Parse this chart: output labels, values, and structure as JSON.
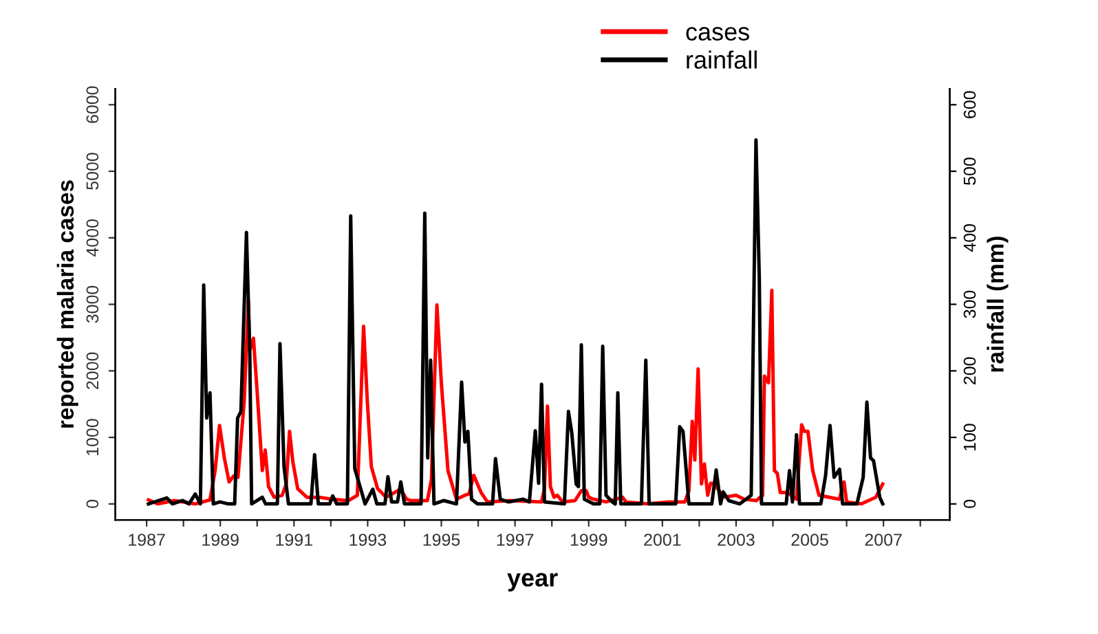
{
  "chart_data": {
    "type": "line",
    "xlabel": "year",
    "ylabel": "reported malaria cases",
    "y2label": "rainfall (mm)",
    "legend": "top",
    "grid": false,
    "line_style": "solid",
    "marker": "none",
    "xlim": [
      1986.15,
      2008.8
    ],
    "xticks": [
      1987,
      {
        "value": 1988,
        "label": null
      },
      1989,
      {
        "value": 1990,
        "label": null
      },
      1991,
      {
        "value": 1992,
        "label": null
      },
      1993,
      {
        "value": 1994,
        "label": null
      },
      1995,
      {
        "value": 1996,
        "label": null
      },
      1997,
      {
        "value": 1998,
        "label": null
      },
      1999,
      {
        "value": 2000,
        "label": null
      },
      2001,
      {
        "value": 2002,
        "label": null
      },
      2003,
      {
        "value": 2004,
        "label": null
      },
      2005,
      {
        "value": 2006,
        "label": null
      },
      2007,
      {
        "value": 2008,
        "label": null
      }
    ],
    "ylim": [
      -240,
      6240
    ],
    "yticks": [
      0,
      1000,
      2000,
      3000,
      4000,
      5000,
      6000
    ],
    "y2lim": [
      -24,
      624
    ],
    "y2ticks": [
      0,
      100,
      200,
      300,
      400,
      500,
      600
    ],
    "series": [
      {
        "name": "cases",
        "color": "#ff0000",
        "x": [
          1987.05,
          1987.3,
          1987.75,
          1988.32,
          1988.72,
          1988.86,
          1988.98,
          1989.11,
          1989.24,
          1989.36,
          1989.48,
          1989.65,
          1989.76,
          1989.8,
          1989.9,
          1990.0,
          1990.14,
          1990.22,
          1990.31,
          1990.46,
          1990.68,
          1990.79,
          1990.88,
          1990.97,
          1991.1,
          1991.35,
          1991.69,
          1992.03,
          1992.48,
          1992.72,
          1992.89,
          1992.99,
          1993.1,
          1993.27,
          1993.5,
          1993.89,
          1994.06,
          1994.17,
          1994.62,
          1994.73,
          1994.88,
          1995.0,
          1995.18,
          1995.41,
          1995.64,
          1995.75,
          1995.88,
          1996.08,
          1996.25,
          1996.87,
          1997.72,
          1997.8,
          1997.88,
          1997.96,
          1998.06,
          1998.15,
          1998.29,
          1998.63,
          1998.8,
          1998.93,
          1999.0,
          1999.13,
          1999.47,
          1999.92,
          2000.01,
          2000.6,
          2001.16,
          2001.61,
          2001.72,
          2001.81,
          2001.88,
          2001.97,
          2002.06,
          2002.14,
          2002.23,
          2002.31,
          2002.42,
          2002.57,
          2002.66,
          2003.0,
          2003.22,
          2003.55,
          2003.72,
          2003.77,
          2003.88,
          2003.97,
          2004.04,
          2004.12,
          2004.2,
          2004.4,
          2004.64,
          2004.78,
          2004.85,
          2004.95,
          2005.08,
          2005.25,
          2005.8,
          2005.93,
          2006.0,
          2006.4,
          2006.79,
          2006.98
        ],
        "values": [
          60,
          0,
          50,
          0,
          60,
          500,
          1180,
          690,
          330,
          420,
          400,
          1550,
          3050,
          2310,
          2490,
          1690,
          500,
          810,
          260,
          100,
          130,
          300,
          1090,
          630,
          230,
          100,
          100,
          70,
          50,
          130,
          2670,
          1550,
          560,
          230,
          100,
          220,
          70,
          50,
          50,
          360,
          2990,
          1820,
          500,
          70,
          130,
          150,
          430,
          170,
          30,
          50,
          30,
          230,
          1470,
          260,
          100,
          130,
          30,
          50,
          200,
          200,
          100,
          70,
          30,
          100,
          30,
          0,
          30,
          30,
          200,
          1240,
          660,
          2030,
          300,
          600,
          130,
          310,
          300,
          170,
          100,
          130,
          70,
          50,
          130,
          1920,
          1820,
          3210,
          500,
          460,
          170,
          170,
          70,
          1190,
          1090,
          1090,
          500,
          130,
          70,
          330,
          30,
          0,
          100,
          300
        ]
      },
      {
        "name": "rainfall",
        "color": "#000000",
        "axis": "y2",
        "x": [
          1987.05,
          1987.55,
          1987.7,
          1987.98,
          1988.15,
          1988.32,
          1988.46,
          1988.55,
          1988.63,
          1988.72,
          1988.81,
          1988.99,
          1989.22,
          1989.39,
          1989.47,
          1989.56,
          1989.71,
          1989.8,
          1989.85,
          1990.14,
          1990.23,
          1990.55,
          1990.62,
          1990.73,
          1990.85,
          1991.46,
          1991.56,
          1991.66,
          1991.97,
          1992.05,
          1992.16,
          1992.45,
          1992.54,
          1992.65,
          1992.93,
          1993.14,
          1993.25,
          1993.47,
          1993.55,
          1993.65,
          1993.81,
          1993.9,
          1994.0,
          1994.45,
          1994.55,
          1994.63,
          1994.71,
          1994.8,
          1995.07,
          1995.41,
          1995.55,
          1995.64,
          1995.72,
          1995.82,
          1995.98,
          1996.39,
          1996.47,
          1996.6,
          1996.82,
          1997.22,
          1997.39,
          1997.55,
          1997.64,
          1997.72,
          1997.8,
          1998.34,
          1998.45,
          1998.54,
          1998.66,
          1998.72,
          1998.8,
          1998.88,
          1999.13,
          1999.3,
          1999.38,
          1999.47,
          1999.64,
          1999.72,
          1999.79,
          1999.87,
          2000.43,
          2000.55,
          2000.64,
          2001.36,
          2001.47,
          2001.56,
          2001.72,
          2002.34,
          2002.46,
          2002.58,
          2002.65,
          2002.8,
          2003.1,
          2003.41,
          2003.54,
          2003.63,
          2003.69,
          2004.36,
          2004.45,
          2004.53,
          2004.62,
          2004.64,
          2004.72,
          2005.3,
          2005.43,
          2005.55,
          2005.66,
          2005.81,
          2005.89,
          2006.28,
          2006.45,
          2006.55,
          2006.65,
          2006.73,
          2006.9,
          2006.98
        ],
        "values": [
          0,
          9,
          0,
          5,
          0,
          15,
          0,
          329,
          129,
          167,
          0,
          3,
          0,
          0,
          129,
          139,
          408,
          228,
          0,
          10,
          0,
          0,
          241,
          56,
          0,
          0,
          74,
          0,
          0,
          12,
          0,
          0,
          433,
          53,
          0,
          22,
          0,
          0,
          41,
          3,
          3,
          33,
          0,
          0,
          437,
          69,
          216,
          0,
          5,
          0,
          183,
          93,
          109,
          7,
          0,
          0,
          68,
          7,
          3,
          7,
          3,
          110,
          31,
          180,
          3,
          0,
          139,
          107,
          30,
          26,
          239,
          7,
          0,
          0,
          237,
          13,
          3,
          0,
          167,
          0,
          0,
          216,
          0,
          0,
          116,
          109,
          0,
          0,
          51,
          0,
          18,
          5,
          0,
          13,
          547,
          340,
          0,
          0,
          50,
          3,
          86,
          104,
          0,
          0,
          43,
          118,
          40,
          52,
          0,
          0,
          40,
          153,
          69,
          65,
          10,
          0
        ]
      }
    ]
  }
}
